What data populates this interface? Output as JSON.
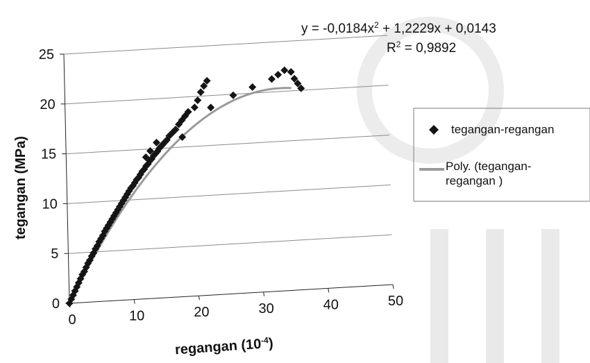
{
  "colors": {
    "marker": "#151515",
    "trendline": "#9a9a9a",
    "gridline": "#8a8a8a",
    "axis": "#222222",
    "watermark": "#cfcfcf"
  },
  "chart_data": {
    "type": "scatter",
    "xlabel": "regangan (10",
    "xlabel_exponent": "-4",
    "xlabel_suffix": ")",
    "ylabel": "tegangan (MPa)",
    "xlim": [
      0,
      50
    ],
    "ylim": [
      0,
      25
    ],
    "x_ticks": [
      0,
      10,
      20,
      30,
      40,
      50
    ],
    "y_ticks": [
      0,
      5,
      10,
      15,
      20,
      25
    ],
    "grid": "horizontal",
    "legend_position": "right",
    "equation": {
      "prefix": "y = -0,0184x",
      "exponent": "2",
      "suffix": " + 1,2229x + 0,0143",
      "r2_prefix": "R",
      "r2_exponent": "2",
      "r2_suffix": " = 0,9892"
    },
    "trendline": {
      "name": "Poly. (tegangan-regangan )",
      "name_line1": "Poly. (tegangan-",
      "name_line2": "regangan )",
      "type": "polynomial",
      "coefficients": [
        -0.0184,
        1.2229,
        0.0143
      ],
      "x_range": [
        0,
        35
      ]
    },
    "series": [
      {
        "name": "tegangan-regangan",
        "marker": "diamond",
        "points": [
          [
            0,
            0
          ],
          [
            0.3,
            0.4
          ],
          [
            0.6,
            0.8
          ],
          [
            0.9,
            1.2
          ],
          [
            1.2,
            1.6
          ],
          [
            1.5,
            2.0
          ],
          [
            1.8,
            2.4
          ],
          [
            2.1,
            2.8
          ],
          [
            2.4,
            3.1
          ],
          [
            2.7,
            3.5
          ],
          [
            3.0,
            3.9
          ],
          [
            3.3,
            4.2
          ],
          [
            3.6,
            4.6
          ],
          [
            3.9,
            4.9
          ],
          [
            4.2,
            5.3
          ],
          [
            4.5,
            5.6
          ],
          [
            4.8,
            6.0
          ],
          [
            5.1,
            6.3
          ],
          [
            5.4,
            6.6
          ],
          [
            5.7,
            7.0
          ],
          [
            6.0,
            7.3
          ],
          [
            6.3,
            7.6
          ],
          [
            6.6,
            7.9
          ],
          [
            6.9,
            8.2
          ],
          [
            7.2,
            8.5
          ],
          [
            7.5,
            8.8
          ],
          [
            7.8,
            9.1
          ],
          [
            8.1,
            9.4
          ],
          [
            8.4,
            9.7
          ],
          [
            8.7,
            10.0
          ],
          [
            9.0,
            10.3
          ],
          [
            9.3,
            10.6
          ],
          [
            9.6,
            10.9
          ],
          [
            9.9,
            11.2
          ],
          [
            10.2,
            11.4
          ],
          [
            10.5,
            11.7
          ],
          [
            10.8,
            12.0
          ],
          [
            11.1,
            12.2
          ],
          [
            11.4,
            12.5
          ],
          [
            11.7,
            12.8
          ],
          [
            12.0,
            13.0
          ],
          [
            12.3,
            13.3
          ],
          [
            12.6,
            13.5
          ],
          [
            12.9,
            13.8
          ],
          [
            13.2,
            14.0
          ],
          [
            13.5,
            14.3
          ],
          [
            13.8,
            14.5
          ],
          [
            14.1,
            14.7
          ],
          [
            14.4,
            15.0
          ],
          [
            14.7,
            15.2
          ],
          [
            15.0,
            15.4
          ],
          [
            15.3,
            15.6
          ],
          [
            15.6,
            15.8
          ],
          [
            16.0,
            16.2
          ],
          [
            16.5,
            16.5
          ],
          [
            17.0,
            16.8
          ],
          [
            17.5,
            17.3
          ],
          [
            18.0,
            17.7
          ],
          [
            18.5,
            18.1
          ],
          [
            19.0,
            18.5
          ],
          [
            12.3,
            14.2
          ],
          [
            13.0,
            14.8
          ],
          [
            14.0,
            15.6
          ],
          [
            18.0,
            16.0
          ],
          [
            20.0,
            18.9
          ],
          [
            20.5,
            19.6
          ],
          [
            21.0,
            20.4
          ],
          [
            21.5,
            21.0
          ],
          [
            22.0,
            21.5
          ],
          [
            22.5,
            18.8
          ],
          [
            26.0,
            19.9
          ],
          [
            29.0,
            20.6
          ],
          [
            32.0,
            21.3
          ],
          [
            33.0,
            21.7
          ],
          [
            34.0,
            22.1
          ],
          [
            35.0,
            21.9
          ],
          [
            35.5,
            21.2
          ],
          [
            36.0,
            20.7
          ],
          [
            36.5,
            20.2
          ]
        ]
      }
    ]
  }
}
